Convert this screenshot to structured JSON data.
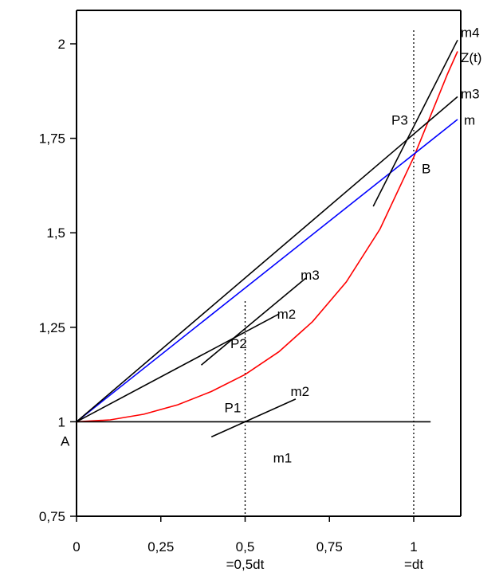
{
  "chart_data": {
    "type": "line",
    "xlim": [
      0,
      1.12
    ],
    "ylim": [
      0.75,
      2.1
    ],
    "x_ticks": [
      0,
      0.25,
      0.5,
      0.75,
      1
    ],
    "x_tick_labels": [
      "0",
      "0,25",
      "0,5",
      "0,75",
      "1"
    ],
    "x_tick_sublabels": [
      {
        "x": 0.5,
        "text": "=0,5dt"
      },
      {
        "x": 1,
        "text": "=dt"
      }
    ],
    "y_ticks": [
      0.75,
      1,
      1.25,
      1.5,
      1.75,
      2
    ],
    "y_tick_labels": [
      "0,75",
      "1",
      "1,25",
      "1,5",
      "1,75",
      "2"
    ],
    "grid": false,
    "series": [
      {
        "name": "Z(t)",
        "color": "#ff0000",
        "kind": "curve",
        "x": [
          0,
          0.1,
          0.2,
          0.3,
          0.4,
          0.5,
          0.6,
          0.7,
          0.8,
          0.9,
          1.0,
          1.05,
          1.1,
          1.13
        ],
        "y": [
          1.0,
          1.005,
          1.02,
          1.045,
          1.08,
          1.125,
          1.185,
          1.265,
          1.37,
          1.51,
          1.7,
          1.81,
          1.92,
          1.98
        ]
      },
      {
        "name": "m",
        "color": "#0000ff",
        "kind": "line",
        "x": [
          0,
          1.13
        ],
        "y": [
          1.0,
          1.8
        ]
      },
      {
        "name": "m3",
        "color": "#000000",
        "kind": "line",
        "x": [
          0,
          1.13
        ],
        "y": [
          1.0,
          1.86
        ]
      },
      {
        "name": "m4",
        "color": "#000000",
        "kind": "line",
        "x": [
          0.88,
          1.13
        ],
        "y": [
          1.57,
          2.01
        ]
      },
      {
        "name": "m1",
        "color": "#000000",
        "kind": "line",
        "x": [
          0,
          1.05
        ],
        "y": [
          1.0,
          1.0
        ]
      },
      {
        "name": "m2",
        "color": "#000000",
        "kind": "line",
        "x": [
          0.4,
          0.65
        ],
        "y": [
          0.96,
          1.06
        ]
      },
      {
        "name": "m2",
        "color": "#000000",
        "kind": "line",
        "x": [
          0,
          0.6
        ],
        "y": [
          1.0,
          1.285
        ]
      },
      {
        "name": "m3",
        "color": "#000000",
        "kind": "line",
        "x": [
          0.37,
          0.68
        ],
        "y": [
          1.15,
          1.38
        ]
      }
    ],
    "vlines": [
      0.5,
      1
    ],
    "annotations": [
      {
        "text": "A",
        "x": 0.0,
        "y": 1.0,
        "color": "#000000"
      },
      {
        "text": "B",
        "x": 1.0,
        "y": 1.7,
        "color": "#000000"
      },
      {
        "text": "P1",
        "x": 0.5,
        "y": 1.0,
        "color": "#000000"
      },
      {
        "text": "P2",
        "x": 0.48,
        "y": 1.245,
        "color": "#000000"
      },
      {
        "text": "P3",
        "x": 1.0,
        "y": 1.765,
        "color": "#000000"
      },
      {
        "text": "m1",
        "x": 0.55,
        "y": 0.955,
        "color": "#000000"
      },
      {
        "text": "m2",
        "x": 0.63,
        "y": 1.06,
        "color": "#000000"
      },
      {
        "text": "m2",
        "x": 0.59,
        "y": 1.285,
        "color": "#000000"
      },
      {
        "text": "m3",
        "x": 0.66,
        "y": 1.38,
        "color": "#000000"
      },
      {
        "text": "m4",
        "x": 1.13,
        "y": 2.01,
        "color": "#000000"
      },
      {
        "text": "Z(t)",
        "x": 1.13,
        "y": 1.96,
        "color": "#ff0000"
      },
      {
        "text": "m3",
        "x": 1.13,
        "y": 1.86,
        "color": "#000000"
      },
      {
        "text": "m",
        "x": 1.13,
        "y": 1.79,
        "color": "#0000ff"
      }
    ]
  }
}
